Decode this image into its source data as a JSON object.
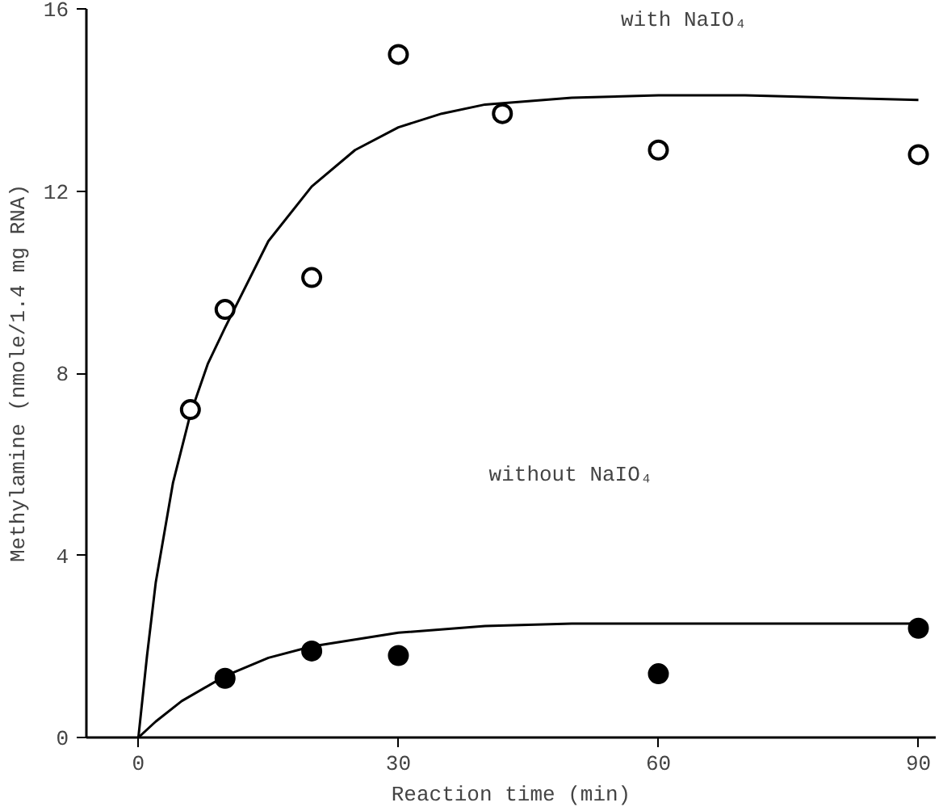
{
  "chart_data": {
    "type": "scatter",
    "xlabel": "Reaction time (min)",
    "ylabel": "Methylamine (nmole/1.4 mg RNA)",
    "xlim": [
      -6,
      92
    ],
    "ylim": [
      0,
      16
    ],
    "xticks": [
      0,
      30,
      60,
      90
    ],
    "yticks": [
      0,
      4,
      8,
      12,
      16
    ],
    "grid": false,
    "series": [
      {
        "type": "line",
        "marker": "none",
        "color": "#000000",
        "x": [
          0,
          1,
          2,
          4,
          6,
          8,
          10,
          15,
          20,
          25,
          30,
          35,
          40,
          50,
          60,
          70,
          80,
          90
        ],
        "values": [
          0,
          1.8,
          3.4,
          5.6,
          7.1,
          8.2,
          9.0,
          10.9,
          12.1,
          12.9,
          13.4,
          13.7,
          13.9,
          14.05,
          14.1,
          14.1,
          14.05,
          14.0
        ]
      },
      {
        "type": "line",
        "marker": "none",
        "color": "#000000",
        "x": [
          0,
          2,
          5,
          10,
          15,
          20,
          30,
          40,
          50,
          60,
          70,
          80,
          90
        ],
        "values": [
          0,
          0.35,
          0.8,
          1.35,
          1.75,
          2.0,
          2.3,
          2.45,
          2.5,
          2.5,
          2.5,
          2.5,
          2.5
        ]
      },
      {
        "marker": "circle",
        "color": "#ffffff",
        "x": [
          6,
          10,
          20,
          30,
          42,
          60,
          90
        ],
        "values": [
          7.2,
          9.4,
          10.1,
          15.0,
          13.7,
          12.9,
          12.8
        ]
      },
      {
        "marker": "circle",
        "color": "#000000",
        "x": [
          10,
          20,
          30,
          60,
          90
        ],
        "values": [
          1.3,
          1.9,
          1.8,
          1.4,
          2.4
        ]
      }
    ],
    "annotations": [
      "with NaIO₄",
      "without NaIO₄"
    ]
  }
}
